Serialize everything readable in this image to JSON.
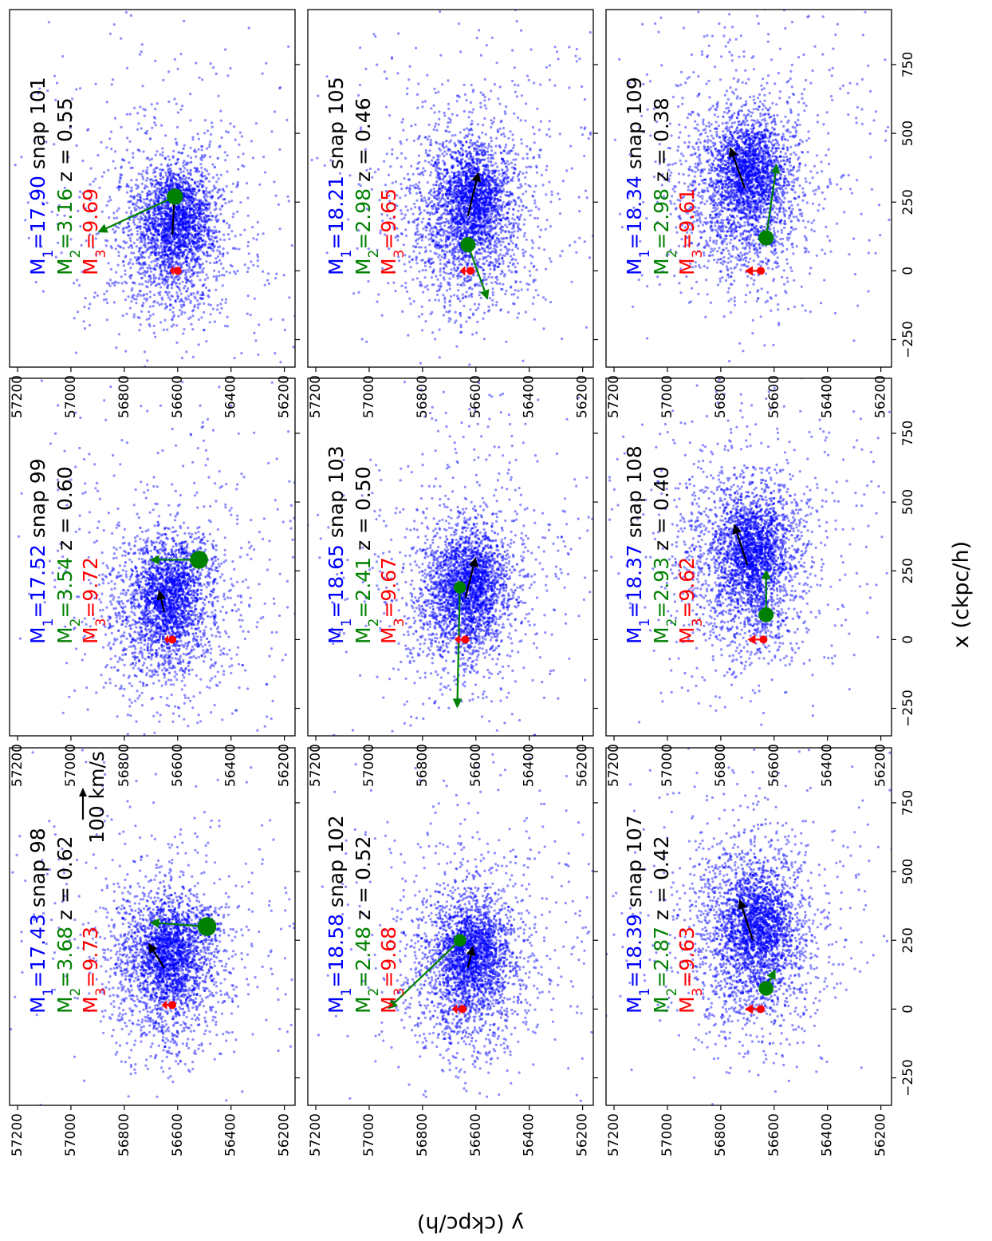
{
  "figure": {
    "xlabel": "x (ckpc/h)",
    "ylabel": "y (ckpc/h)",
    "scale_label": "100 km/s"
  },
  "colors": {
    "halo1": "#0000ff",
    "halo2": "#008000",
    "halo3": "#ff0000",
    "axes": "#000000",
    "arrow_main": "#000000"
  },
  "chart_data": [
    {
      "type": "scatter",
      "snap": 98,
      "snap_label": "snap 98",
      "z_label": "z = 0.62",
      "M1": "17.43",
      "M2": "3.68",
      "M3": "9.73",
      "centers": {
        "h1": [
          150,
          56650
        ],
        "h2": [
          300,
          56490
        ],
        "h3": [
          15,
          56620
        ]
      },
      "velocities": {
        "main": [
          90,
          60
        ],
        "h2": [
          15,
          215
        ],
        "h3": [
          0,
          40
        ]
      },
      "spread": {
        "h1": [
          150,
          110
        ],
        "h2": [
          45,
          35
        ]
      },
      "n_h1": 1500,
      "n_h2": 90
    },
    {
      "type": "scatter",
      "snap": 99,
      "snap_label": "snap 99",
      "z_label": "z = 0.60",
      "M1": "17.52",
      "M2": "3.54",
      "M3": "9.72",
      "centers": {
        "h1": [
          100,
          56650
        ],
        "h2": [
          290,
          56520
        ],
        "h3": [
          0,
          56620
        ]
      },
      "velocities": {
        "main": [
          80,
          20
        ],
        "h2": [
          0,
          185
        ],
        "h3": [
          0,
          30
        ]
      },
      "spread": {
        "h1": [
          150,
          110
        ],
        "h2": [
          45,
          35
        ]
      },
      "n_h1": 1400,
      "n_h2": 80
    },
    {
      "type": "scatter",
      "snap": 101,
      "snap_label": "snap 101",
      "z_label": "z = 0.55",
      "M1": "17.90",
      "M2": "3.16",
      "M3": "9.69",
      "centers": {
        "h1": [
          130,
          56620
        ],
        "h2": [
          270,
          56610
        ],
        "h3": [
          0,
          56600
        ]
      },
      "velocities": {
        "main": [
          170,
          -10
        ],
        "h2": [
          -130,
          290
        ],
        "h3": [
          0,
          30
        ]
      },
      "spread": {
        "h1": [
          150,
          110
        ],
        "h2": [
          40,
          30
        ]
      },
      "n_h1": 1500,
      "n_h2": 60
    },
    {
      "type": "scatter",
      "snap": 102,
      "snap_label": "snap 102",
      "z_label": "z = 0.52",
      "M1": "18.58",
      "M2": "2.48",
      "M3": "9.68",
      "centers": {
        "h1": [
          150,
          56630
        ],
        "h2": [
          250,
          56660
        ],
        "h3": [
          0,
          56650
        ]
      },
      "velocities": {
        "main": [
          80,
          -20
        ],
        "h2": [
          -250,
          270
        ],
        "h3": [
          0,
          40
        ]
      },
      "spread": {
        "h1": [
          150,
          110
        ],
        "h2": [
          25,
          25
        ]
      },
      "n_h1": 1600,
      "n_h2": 30
    },
    {
      "type": "scatter",
      "snap": 103,
      "snap_label": "snap 103",
      "z_label": "z = 0.50",
      "M1": "18.65",
      "M2": "2.41",
      "M3": "9.67",
      "centers": {
        "h1": [
          150,
          56640
        ],
        "h2": [
          190,
          56660
        ],
        "h3": [
          0,
          56640
        ]
      },
      "velocities": {
        "main": [
          150,
          -40
        ],
        "h2": [
          -440,
          10
        ],
        "h3": [
          0,
          40
        ]
      },
      "spread": {
        "h1": [
          150,
          110
        ],
        "h2": [
          25,
          25
        ]
      },
      "n_h1": 1600,
      "n_h2": 30
    },
    {
      "type": "scatter",
      "snap": 105,
      "snap_label": "snap 105",
      "z_label": "z = 0.46",
      "M1": "18.21",
      "M2": "2.98",
      "M3": "9.65",
      "centers": {
        "h1": [
          200,
          56630
        ],
        "h2": [
          95,
          56630
        ],
        "h3": [
          0,
          56620
        ]
      },
      "velocities": {
        "main": [
          160,
          -40
        ],
        "h2": [
          -200,
          -75
        ],
        "h3": [
          0,
          40
        ]
      },
      "spread": {
        "h1": [
          170,
          120
        ],
        "h2": [
          30,
          25
        ]
      },
      "n_h1": 1800,
      "n_h2": 40
    },
    {
      "type": "scatter",
      "snap": 107,
      "snap_label": "snap 107",
      "z_label": "z = 0.42",
      "M1": "18.39",
      "M2": "2.87",
      "M3": "9.63",
      "centers": {
        "h1": [
          250,
          56680
        ],
        "h2": [
          75,
          56630
        ],
        "h3": [
          0,
          56650
        ]
      },
      "velocities": {
        "main": [
          150,
          50
        ],
        "h2": [
          70,
          -35
        ],
        "h3": [
          0,
          60
        ]
      },
      "spread": {
        "h1": [
          170,
          120
        ],
        "h2": [
          30,
          25
        ]
      },
      "n_h1": 1800,
      "n_h2": 40
    },
    {
      "type": "scatter",
      "snap": 108,
      "snap_label": "snap 108",
      "z_label": "z = 0.40",
      "M1": "18.37",
      "M2": "2.93",
      "M3": "9.62",
      "centers": {
        "h1": [
          270,
          56700
        ],
        "h2": [
          90,
          56630
        ],
        "h3": [
          0,
          56640
        ]
      },
      "velocities": {
        "main": [
          150,
          50
        ],
        "h2": [
          165,
          0
        ],
        "h3": [
          0,
          60
        ]
      },
      "spread": {
        "h1": [
          170,
          120
        ],
        "h2": [
          30,
          25
        ]
      },
      "n_h1": 1800,
      "n_h2": 40
    },
    {
      "type": "scatter",
      "snap": 109,
      "snap_label": "snap 109",
      "z_label": "z = 0.38",
      "M1": "18.34",
      "M2": "2.98",
      "M3": "9.61",
      "centers": {
        "h1": [
          300,
          56710
        ],
        "h2": [
          120,
          56630
        ],
        "h3": [
          0,
          56650
        ]
      },
      "velocities": {
        "main": [
          150,
          55
        ],
        "h2": [
          270,
          -40
        ],
        "h3": [
          0,
          60
        ]
      },
      "spread": {
        "h1": [
          170,
          120
        ],
        "h2": [
          30,
          25
        ]
      },
      "n_h1": 1800,
      "n_h2": 40
    }
  ],
  "axes_spec": {
    "x_ticks": [
      -250,
      0,
      250,
      500,
      750
    ],
    "x_tick_labels": [
      "−250",
      "0",
      "250",
      "500",
      "750"
    ],
    "y_ticks": [
      57200,
      57000,
      56800,
      56600,
      56400,
      56200
    ],
    "y_tick_labels": [
      "57200",
      "57000",
      "56800",
      "56600",
      "56400",
      "56200"
    ],
    "xlim": [
      -350,
      950
    ],
    "ylim": [
      56160,
      57230
    ]
  }
}
